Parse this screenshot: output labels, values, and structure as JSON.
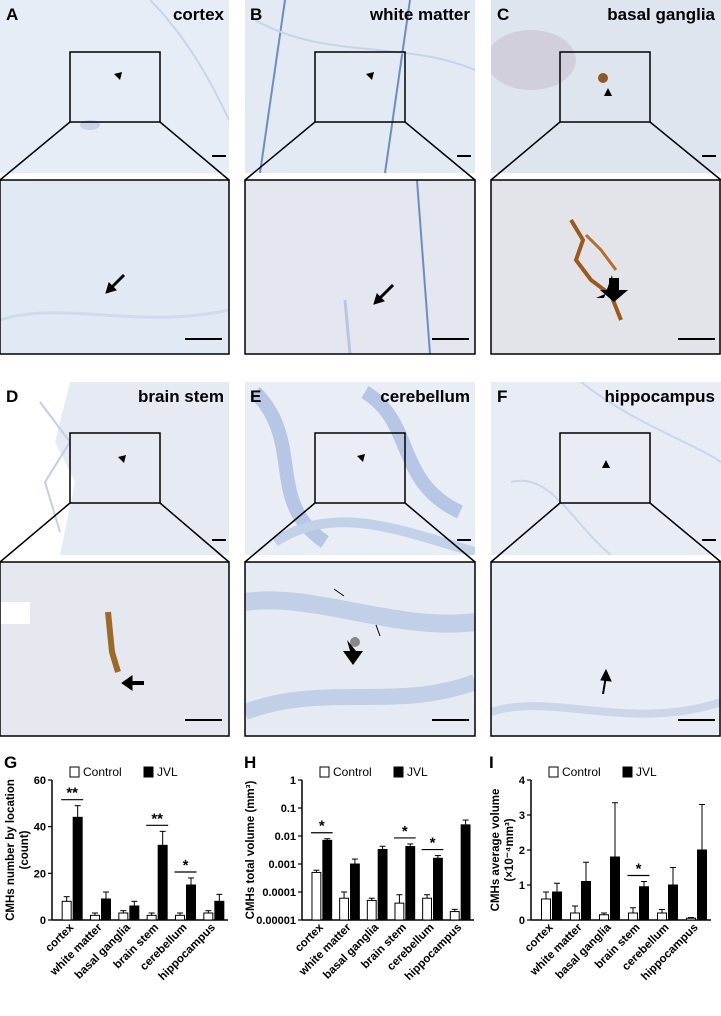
{
  "micrographs": [
    {
      "letter": "A",
      "label": "cortex"
    },
    {
      "letter": "B",
      "label": "white matter"
    },
    {
      "letter": "C",
      "label": "basal ganglia"
    },
    {
      "letter": "D",
      "label": "brain stem"
    },
    {
      "letter": "E",
      "label": "cerebellum"
    },
    {
      "letter": "F",
      "label": "hippocampus"
    }
  ],
  "colors": {
    "tissue_background": "#dde6f3",
    "tissue_detail": "#b9c9e4",
    "hemorrhage": "#a56a2a",
    "control_bar": "#ffffff",
    "jvl_bar": "#000000"
  },
  "chart_data": [
    {
      "panel": "G",
      "type": "bar",
      "ylabel": "CMHs number by location (count)",
      "ylabel_lines": [
        "CMHs number by location",
        "(count)"
      ],
      "ylim": [
        0,
        60
      ],
      "yticks": [
        "0",
        "20",
        "40",
        "60"
      ],
      "ytick_values": [
        0,
        20,
        40,
        60
      ],
      "scale": "linear",
      "categories": [
        "cortex",
        "white matter",
        "basal ganglia",
        "brain stem",
        "cerebellum",
        "hippocampus"
      ],
      "legend": [
        "Control",
        "JVL"
      ],
      "legend_position": "top",
      "series": [
        {
          "name": "Control",
          "values": [
            8,
            2,
            3,
            2,
            2,
            3
          ],
          "errors": [
            2,
            1,
            1,
            1,
            1,
            1
          ]
        },
        {
          "name": "JVL",
          "values": [
            44,
            9,
            6,
            32,
            15,
            8
          ],
          "errors": [
            5,
            3,
            2,
            6,
            3,
            3
          ]
        }
      ],
      "significance": [
        {
          "category": "cortex",
          "text": "**"
        },
        {
          "category": "brain stem",
          "text": "**"
        },
        {
          "category": "cerebellum",
          "text": "*"
        }
      ]
    },
    {
      "panel": "H",
      "type": "bar",
      "ylabel": "CMHs total volume (mm³)",
      "ylabel_lines": [
        "CMHs total volume (mm³)"
      ],
      "ylim": [
        1e-05,
        1
      ],
      "yticks": [
        "0.00001",
        "0.0001",
        "0.001",
        "0.01",
        "0.1",
        "1"
      ],
      "ytick_values": [
        1e-05,
        0.0001,
        0.001,
        0.01,
        0.1,
        1
      ],
      "scale": "log",
      "categories": [
        "cortex",
        "white matter",
        "basal ganglia",
        "brain stem",
        "cerebellum",
        "hippocampus"
      ],
      "legend": [
        "Control",
        "JVL"
      ],
      "legend_position": "top",
      "series": [
        {
          "name": "Control",
          "values": [
            0.0005,
            6e-05,
            5e-05,
            4e-05,
            6e-05,
            2e-05
          ],
          "errors": [
            0.0001,
            4e-05,
            1e-05,
            4e-05,
            2e-05,
            4e-06
          ]
        },
        {
          "name": "JVL",
          "values": [
            0.007,
            0.001,
            0.0033,
            0.0042,
            0.0016,
            0.025
          ],
          "errors": [
            0.001,
            0.0005,
            0.001,
            0.001,
            0.0004,
            0.012
          ]
        }
      ],
      "significance": [
        {
          "category": "cortex",
          "text": "*"
        },
        {
          "category": "brain stem",
          "text": "*"
        },
        {
          "category": "cerebellum",
          "text": "*"
        }
      ]
    },
    {
      "panel": "I",
      "type": "bar",
      "ylabel": "CMHs average volume (×10⁻⁴mm³)",
      "ylabel_lines": [
        "CMHs average volume",
        "(×10⁻⁴mm³)"
      ],
      "ylim": [
        0,
        4
      ],
      "yticks": [
        "0",
        "1",
        "2",
        "3",
        "4"
      ],
      "ytick_values": [
        0,
        1,
        2,
        3,
        4
      ],
      "scale": "linear",
      "categories": [
        "cortex",
        "white matter",
        "basal ganglia",
        "brain stem",
        "cerebellum",
        "hippocampus"
      ],
      "legend": [
        "Control",
        "JVL"
      ],
      "legend_position": "top",
      "series": [
        {
          "name": "Control",
          "values": [
            0.6,
            0.2,
            0.15,
            0.2,
            0.2,
            0.05
          ],
          "errors": [
            0.2,
            0.2,
            0.05,
            0.15,
            0.1,
            0.02
          ]
        },
        {
          "name": "JVL",
          "values": [
            0.8,
            1.1,
            1.8,
            0.95,
            1.0,
            2.0
          ],
          "errors": [
            0.25,
            0.55,
            1.55,
            0.15,
            0.5,
            1.3
          ]
        }
      ],
      "significance": [
        {
          "category": "brain stem",
          "text": "*"
        }
      ]
    }
  ]
}
